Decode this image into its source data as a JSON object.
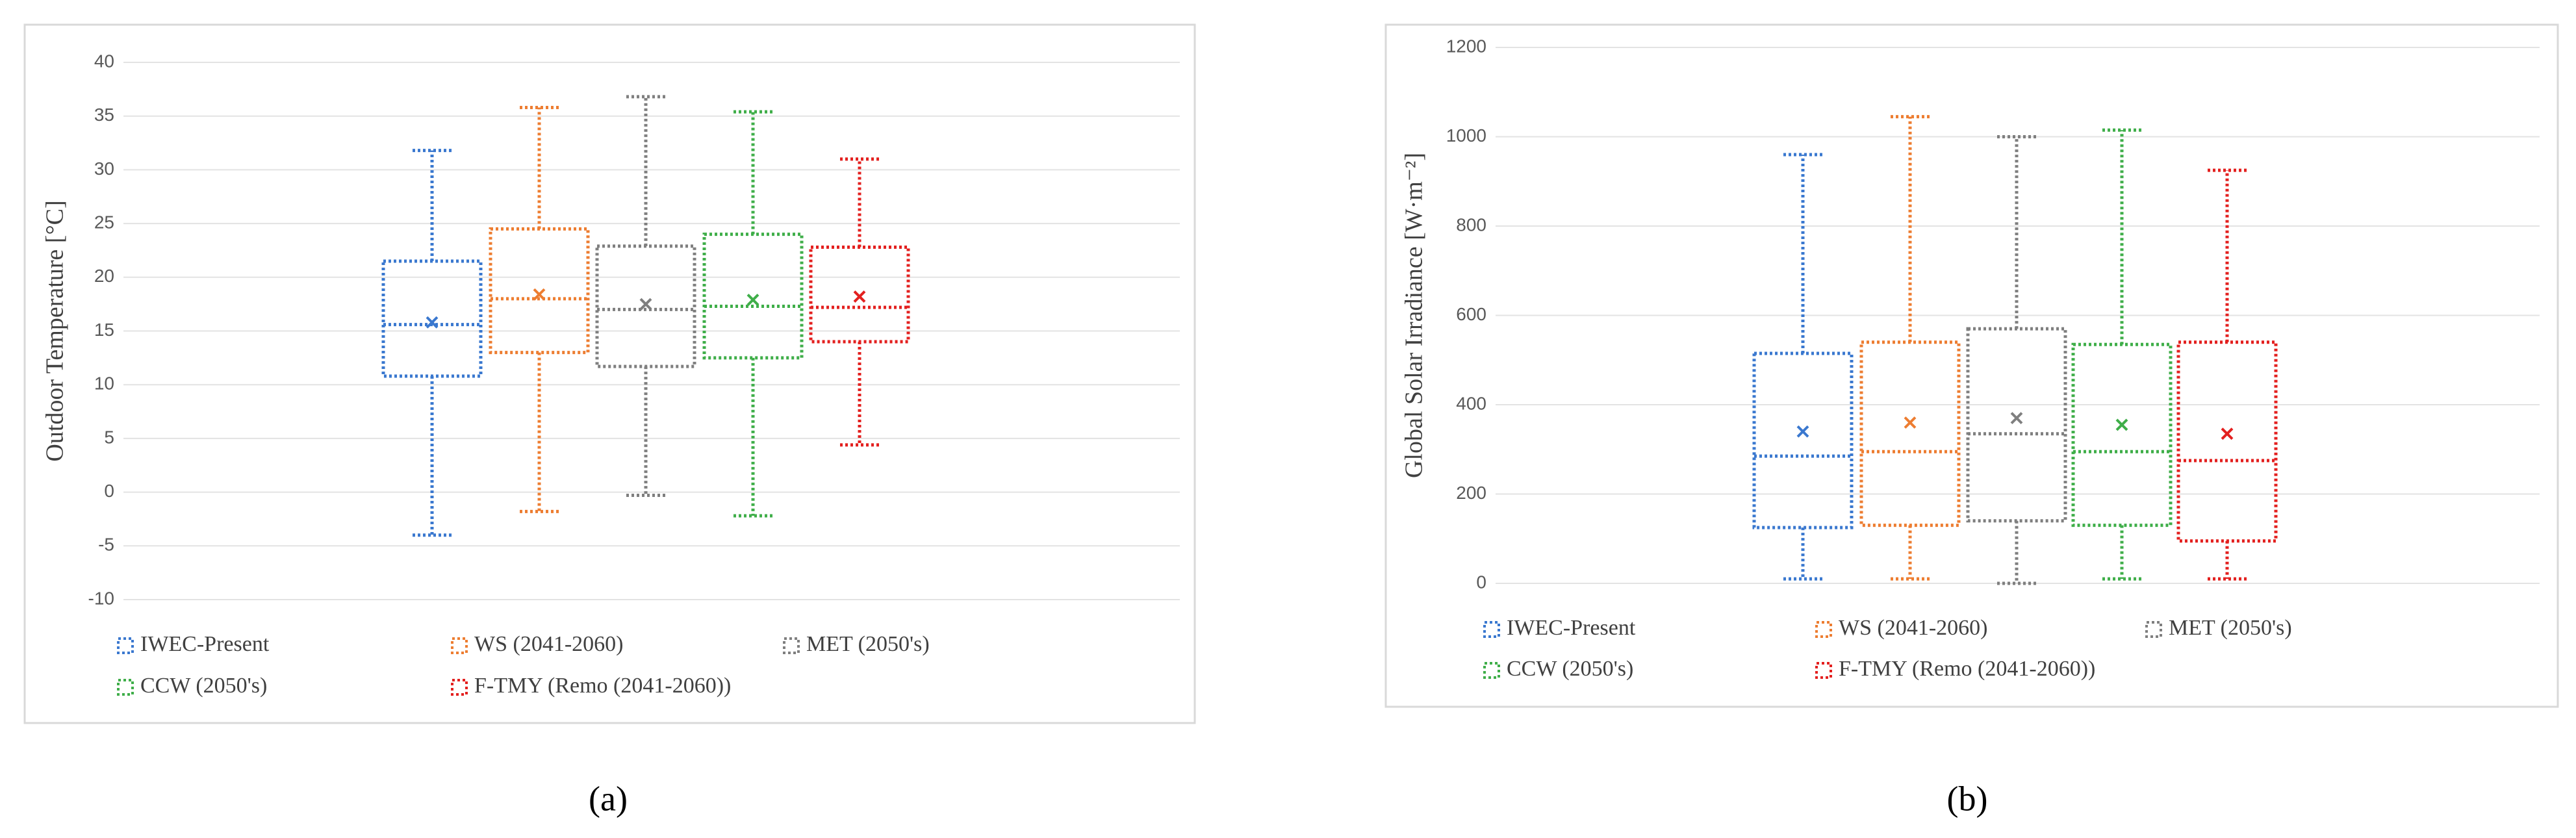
{
  "chart_data": [
    {
      "type": "box",
      "caption": "(a)",
      "ylabel": "Outdoor Temperature [°C]",
      "ylim": [
        -10,
        40
      ],
      "yticks": [
        -10,
        -5,
        0,
        5,
        10,
        15,
        20,
        25,
        30,
        35,
        40
      ],
      "grid": true,
      "legend": "bottom",
      "series": [
        {
          "name": "IWEC-Present",
          "color": "#3a78cf",
          "min": -4,
          "q1": 10.8,
          "median": 15.6,
          "q3": 21.5,
          "max": 31.8,
          "mean": 15.8
        },
        {
          "name": "WS (2041-2060)",
          "color": "#ed7d31",
          "min": -1.8,
          "q1": 13,
          "median": 18,
          "q3": 24.5,
          "max": 35.8,
          "mean": 18.4
        },
        {
          "name": "MET (2050's)",
          "color": "#7f7f7f",
          "min": -0.3,
          "q1": 11.7,
          "median": 17,
          "q3": 22.9,
          "max": 36.8,
          "mean": 17.5
        },
        {
          "name": "CCW (2050's)",
          "color": "#3fae49",
          "min": -2.2,
          "q1": 12.5,
          "median": 17.3,
          "q3": 24,
          "max": 35.4,
          "mean": 17.9
        },
        {
          "name": "F-TMY (Remo (2041-2060))",
          "color": "#e3201f",
          "min": 4.4,
          "q1": 14,
          "median": 17.2,
          "q3": 22.8,
          "max": 31,
          "mean": 18.2
        }
      ]
    },
    {
      "type": "box",
      "caption": "(b)",
      "ylabel": "Global Solar Irradiance [W·m⁻²]",
      "ylim": [
        0,
        1200
      ],
      "yticks": [
        0,
        200,
        400,
        600,
        800,
        1000,
        1200
      ],
      "grid": true,
      "legend": "bottom",
      "series": [
        {
          "name": "IWEC-Present",
          "color": "#3a78cf",
          "min": 10,
          "q1": 125,
          "median": 285,
          "q3": 515,
          "max": 960,
          "mean": 340
        },
        {
          "name": "WS (2041-2060)",
          "color": "#ed7d31",
          "min": 10,
          "q1": 130,
          "median": 295,
          "q3": 540,
          "max": 1045,
          "mean": 360
        },
        {
          "name": "MET (2050's)",
          "color": "#7f7f7f",
          "min": 0,
          "q1": 140,
          "median": 335,
          "q3": 570,
          "max": 1000,
          "mean": 370
        },
        {
          "name": "CCW (2050's)",
          "color": "#3fae49",
          "min": 10,
          "q1": 130,
          "median": 295,
          "q3": 535,
          "max": 1015,
          "mean": 355
        },
        {
          "name": "F-TMY (Remo (2041-2060))",
          "color": "#e3201f",
          "min": 10,
          "q1": 95,
          "median": 275,
          "q3": 540,
          "max": 925,
          "mean": 335
        }
      ]
    }
  ]
}
